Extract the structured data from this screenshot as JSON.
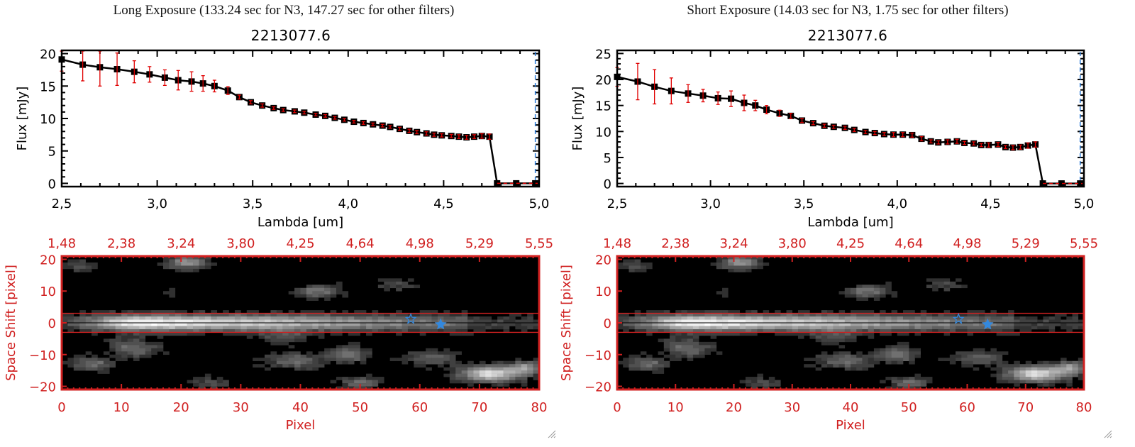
{
  "panels": [
    {
      "title": "Long Exposure (133.24 sec for N3, 147.27 sec for other filters)",
      "object_id": "2213077.6"
    },
    {
      "title": "Short Exposure (14.03 sec for N3, 1.75 sec for other filters)",
      "object_id": "2213077.6"
    }
  ],
  "chart_data": [
    {
      "type": "line",
      "name": "long-exposure-spectrum",
      "title": "2213077.6",
      "xlabel": "Lambda [um]",
      "ylabel": "Flux [mJy]",
      "xlim": [
        2.5,
        5.0
      ],
      "ylim": [
        -0.5,
        20.5
      ],
      "xticks": [
        "2.5",
        "3.0",
        "3.5",
        "4.0",
        "4.5",
        "5.0"
      ],
      "xtick_values": [
        2.5,
        3.0,
        3.5,
        4.0,
        4.5,
        5.0
      ],
      "yticks": [
        "0",
        "5",
        "10",
        "15",
        "20"
      ],
      "ytick_values": [
        0,
        5,
        10,
        15,
        20
      ],
      "x": [
        2.5,
        2.61,
        2.7,
        2.79,
        2.88,
        2.96,
        3.04,
        3.11,
        3.18,
        3.24,
        3.3,
        3.37,
        3.43,
        3.49,
        3.55,
        3.61,
        3.66,
        3.72,
        3.77,
        3.83,
        3.88,
        3.93,
        3.98,
        4.03,
        4.08,
        4.13,
        4.18,
        4.22,
        4.27,
        4.32,
        4.36,
        4.41,
        4.45,
        4.49,
        4.54,
        4.58,
        4.62,
        4.66,
        4.7,
        4.74,
        4.78,
        4.88,
        4.98
      ],
      "y": [
        19.1,
        18.3,
        17.9,
        17.6,
        17.2,
        16.8,
        16.3,
        15.9,
        15.7,
        15.4,
        15.0,
        14.3,
        13.3,
        12.5,
        12.0,
        11.6,
        11.3,
        11.1,
        10.9,
        10.6,
        10.4,
        10.1,
        9.8,
        9.5,
        9.3,
        9.1,
        8.9,
        8.7,
        8.4,
        8.1,
        7.9,
        7.7,
        7.5,
        7.4,
        7.3,
        7.2,
        7.1,
        7.2,
        7.3,
        7.2,
        0.0,
        0.0,
        0.0
      ],
      "yerr": [
        1.8,
        2.5,
        2.9,
        2.5,
        1.7,
        1.2,
        1.2,
        1.5,
        1.5,
        1.2,
        0.9,
        0.6,
        0.3,
        0.25,
        0.25,
        0.2,
        0.2,
        0.2,
        0.2,
        0.2,
        0.2,
        0.2,
        0.2,
        0.2,
        0.2,
        0.2,
        0.2,
        0.2,
        0.25,
        0.25,
        0.25,
        0.25,
        0.25,
        0.25,
        0.25,
        0.3,
        0.3,
        0.3,
        0.35,
        0.4,
        0,
        0,
        0
      ],
      "line_color": "#000000",
      "marker_color": "#000000",
      "errorbar_color": "#e00000",
      "zero_line_color": "#e00000",
      "cutoff_line_color": "#2a7ddc",
      "cutoff_x": 4.98
    },
    {
      "type": "line",
      "name": "short-exposure-spectrum",
      "title": "2213077.6",
      "xlabel": "Lambda [um]",
      "ylabel": "Flux [mJy]",
      "xlim": [
        2.5,
        5.0
      ],
      "ylim": [
        -0.6,
        25.6
      ],
      "xticks": [
        "2.5",
        "3.0",
        "3.5",
        "4.0",
        "4.5",
        "5.0"
      ],
      "xtick_values": [
        2.5,
        3.0,
        3.5,
        4.0,
        4.5,
        5.0
      ],
      "yticks": [
        "0",
        "5",
        "10",
        "15",
        "20",
        "25"
      ],
      "ytick_values": [
        0,
        5,
        10,
        15,
        20,
        25
      ],
      "x": [
        2.5,
        2.61,
        2.7,
        2.79,
        2.88,
        2.96,
        3.04,
        3.11,
        3.18,
        3.24,
        3.3,
        3.37,
        3.43,
        3.49,
        3.55,
        3.61,
        3.66,
        3.72,
        3.77,
        3.83,
        3.88,
        3.93,
        3.98,
        4.03,
        4.08,
        4.13,
        4.18,
        4.22,
        4.27,
        4.32,
        4.36,
        4.41,
        4.45,
        4.49,
        4.54,
        4.58,
        4.62,
        4.66,
        4.7,
        4.74,
        4.78,
        4.88,
        4.98
      ],
      "y": [
        20.5,
        19.6,
        18.6,
        17.8,
        17.3,
        16.9,
        16.4,
        16.3,
        15.5,
        15.0,
        14.2,
        13.5,
        13.0,
        12.1,
        11.6,
        11.1,
        10.9,
        10.7,
        10.3,
        9.9,
        9.7,
        9.5,
        9.4,
        9.4,
        9.3,
        8.6,
        8.1,
        7.9,
        8.0,
        8.1,
        7.8,
        7.7,
        7.4,
        7.4,
        7.5,
        7.0,
        6.9,
        7.0,
        7.3,
        7.5,
        0.0,
        0.0,
        0.0
      ],
      "yerr": [
        1.8,
        3.5,
        3.3,
        2.5,
        1.7,
        1.2,
        1.2,
        1.5,
        1.5,
        1.0,
        0.8,
        0.6,
        0.5,
        0.4,
        0.3,
        0.3,
        0.3,
        0.3,
        0.3,
        0.3,
        0.3,
        0.3,
        0.4,
        0.4,
        0.4,
        0.4,
        0.3,
        0.3,
        0.4,
        0.4,
        0.3,
        0.3,
        0.3,
        0.4,
        0.4,
        0.3,
        0.4,
        0.4,
        0.5,
        0.5,
        0,
        0,
        0
      ],
      "line_color": "#000000",
      "marker_color": "#000000",
      "errorbar_color": "#e00000",
      "zero_line_color": "#e00000",
      "cutoff_line_color": "#2a7ddc",
      "cutoff_x": 4.98
    },
    {
      "type": "heatmap",
      "name": "long-exposure-image",
      "xlabel": "Pixel",
      "ylabel": "Space Shift [pixel]",
      "xlim": [
        0,
        80
      ],
      "ylim": [
        -21,
        21
      ],
      "xticks": [
        "0",
        "10",
        "20",
        "30",
        "40",
        "50",
        "60",
        "70",
        "80"
      ],
      "xtick_values": [
        0,
        10,
        20,
        30,
        40,
        50,
        60,
        70,
        80
      ],
      "yticks": [
        "20",
        "10",
        "0",
        "-10",
        "-20"
      ],
      "ytick_values": [
        20,
        10,
        0,
        -10,
        -20
      ],
      "top_axis_label_values": [
        "1.48",
        "2.38",
        "3.24",
        "3.80",
        "4.25",
        "4.64",
        "4.98",
        "5.29",
        "5.55"
      ],
      "aperture_lines": [
        3,
        -3
      ],
      "center_line": 0,
      "star_markers": [
        {
          "x": 58.5,
          "y": 1.2,
          "filled": false
        },
        {
          "x": 63.5,
          "y": -0.5,
          "filled": true
        }
      ],
      "frame_color": "#d02020",
      "star_color": "#3388dd"
    },
    {
      "type": "heatmap",
      "name": "short-exposure-image",
      "xlabel": "Pixel",
      "ylabel": "Space Shift [pixel]",
      "xlim": [
        0,
        80
      ],
      "ylim": [
        -21,
        21
      ],
      "xticks": [
        "0",
        "10",
        "20",
        "30",
        "40",
        "50",
        "60",
        "70",
        "80"
      ],
      "xtick_values": [
        0,
        10,
        20,
        30,
        40,
        50,
        60,
        70,
        80
      ],
      "yticks": [
        "20",
        "10",
        "0",
        "-10",
        "-20"
      ],
      "ytick_values": [
        20,
        10,
        0,
        -10,
        -20
      ],
      "top_axis_label_values": [
        "1.48",
        "2.38",
        "3.24",
        "3.80",
        "4.25",
        "4.64",
        "4.98",
        "5.29",
        "5.55"
      ],
      "aperture_lines": [
        3,
        -3
      ],
      "center_line": 0,
      "star_markers": [
        {
          "x": 58.5,
          "y": 1.2,
          "filled": false
        },
        {
          "x": 63.5,
          "y": -0.5,
          "filled": true
        }
      ],
      "frame_color": "#d02020",
      "star_color": "#3388dd"
    }
  ]
}
